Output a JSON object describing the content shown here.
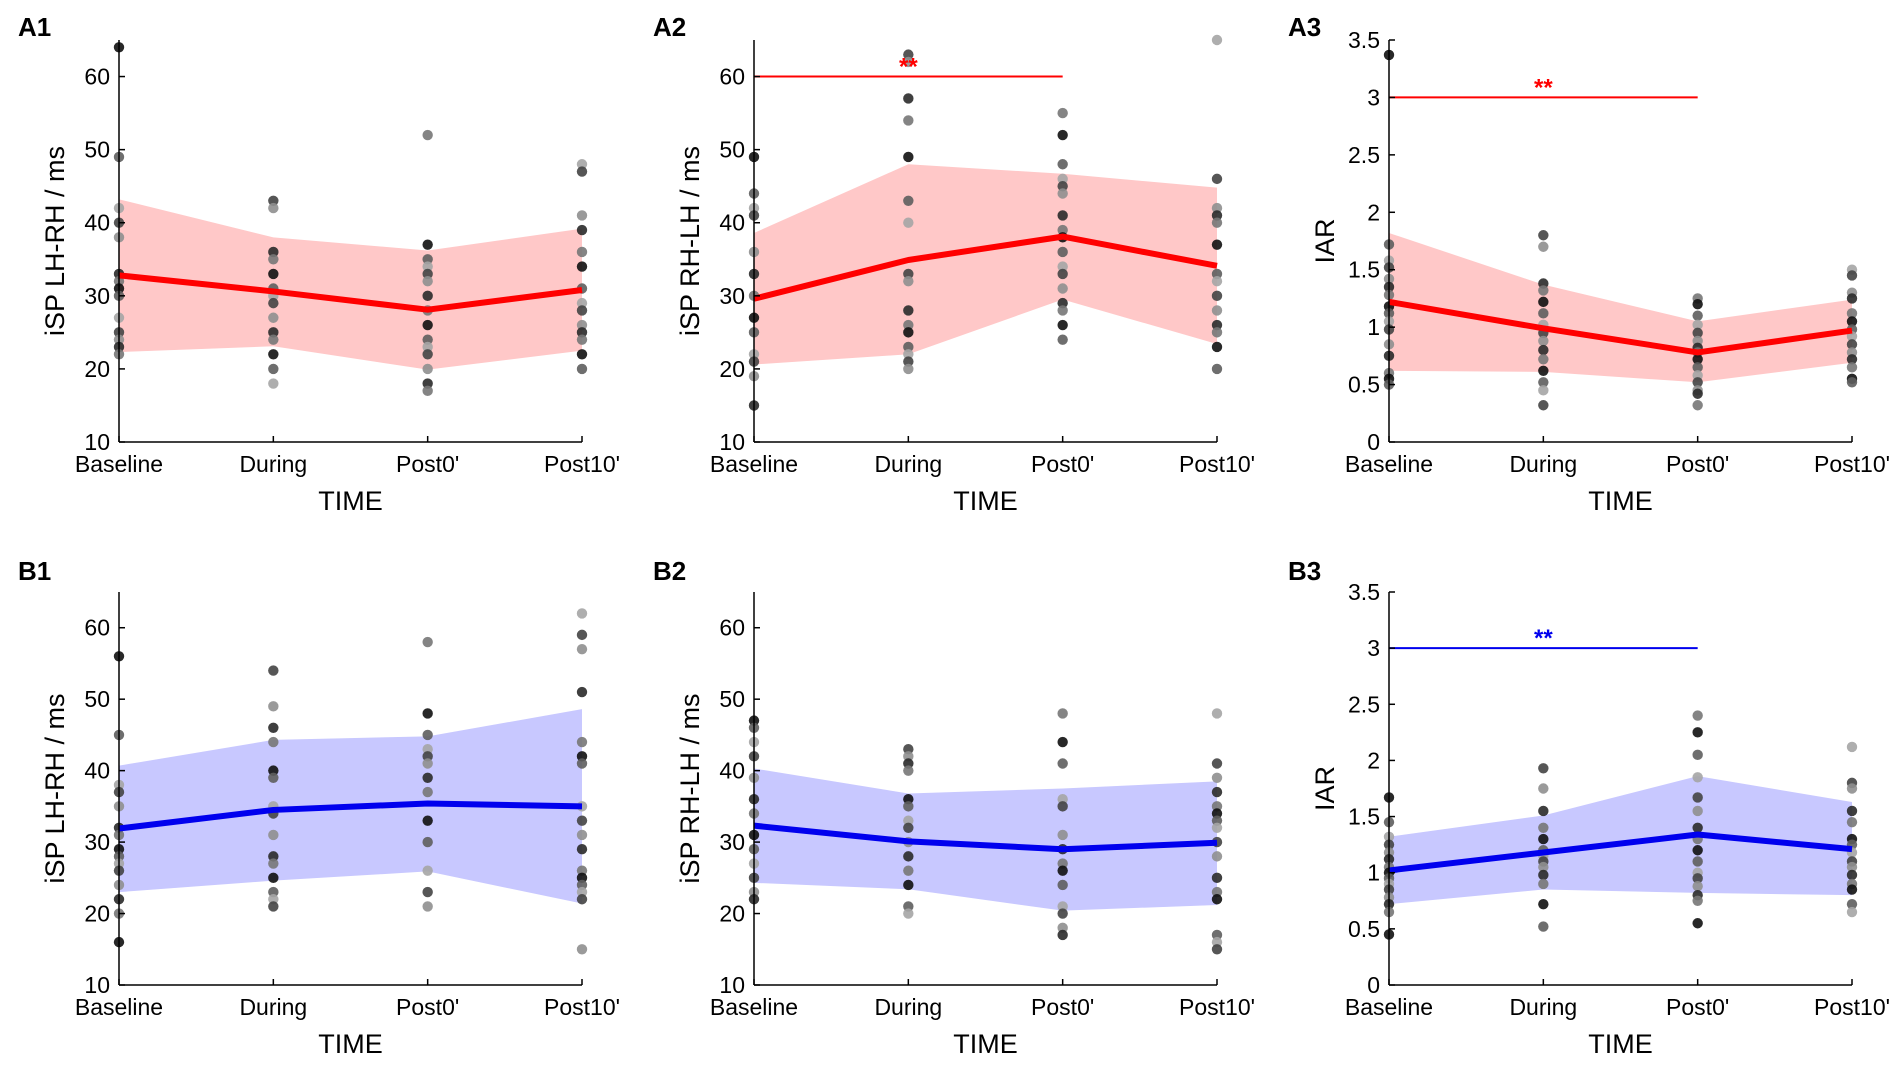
{
  "figure": {
    "description_free": true,
    "x_axis_title": "TIME",
    "categories": [
      "Baseline",
      "During",
      "Post0'",
      "Post10'"
    ]
  },
  "colors": {
    "red_line": "#ff0000",
    "red_band": "#ffc8c8",
    "blue_line": "#0000ee",
    "blue_band": "#c8c8ff",
    "axis": "#000000"
  },
  "chart_data": [
    {
      "panel": "A1",
      "type": "line",
      "color": "red",
      "xlabel": "TIME",
      "ylabel": "iSP LH-RH / ms",
      "categories": [
        "Baseline",
        "During",
        "Post0'",
        "Post10'"
      ],
      "ylim": [
        10,
        65
      ],
      "yticks": [
        10,
        20,
        30,
        40,
        50,
        60
      ],
      "ytick_labels": [
        "10",
        "20",
        "30",
        "40",
        "50",
        "60"
      ],
      "mean": [
        32.8,
        30.6,
        28.1,
        30.8
      ],
      "band_upper": [
        43.2,
        38.0,
        36.2,
        39.2
      ],
      "band_lower": [
        22.3,
        23.1,
        19.9,
        22.5
      ],
      "points": [
        [
          64,
          49,
          42,
          40,
          38,
          33,
          32,
          31,
          30,
          27,
          25,
          24,
          23,
          22
        ],
        [
          43,
          42,
          36,
          35,
          33,
          31,
          30,
          29,
          27,
          25,
          24,
          22,
          20,
          18
        ],
        [
          52,
          37,
          35,
          34,
          33,
          32,
          30,
          28,
          26,
          24,
          23,
          22,
          20,
          18,
          17
        ],
        [
          48,
          47,
          41,
          39,
          36,
          34,
          31,
          29,
          28,
          26,
          25,
          24,
          22,
          20
        ]
      ],
      "significance": null
    },
    {
      "panel": "A2",
      "type": "line",
      "color": "red",
      "xlabel": "TIME",
      "ylabel": "iSP RH-LH / ms",
      "categories": [
        "Baseline",
        "During",
        "Post0'",
        "Post10'"
      ],
      "ylim": [
        10,
        65
      ],
      "yticks": [
        10,
        20,
        30,
        40,
        50,
        60
      ],
      "ytick_labels": [
        "10",
        "20",
        "30",
        "40",
        "50",
        "60"
      ],
      "mean": [
        29.6,
        34.9,
        38.1,
        34.1
      ],
      "band_upper": [
        38.6,
        48.0,
        46.7,
        44.8
      ],
      "band_lower": [
        20.6,
        22.0,
        29.5,
        23.4
      ],
      "points": [
        [
          49,
          44,
          42,
          41,
          36,
          33,
          30,
          27,
          25,
          22,
          21,
          19,
          15
        ],
        [
          63,
          62,
          57,
          54,
          49,
          43,
          40,
          33,
          32,
          28,
          26,
          25,
          23,
          22,
          21,
          20
        ],
        [
          55,
          52,
          48,
          46,
          45,
          44,
          41,
          39,
          38,
          36,
          34,
          33,
          31,
          29,
          28,
          26,
          24
        ],
        [
          65,
          46,
          42,
          41,
          40,
          37,
          33,
          32,
          30,
          28,
          26,
          25,
          23,
          20
        ]
      ],
      "significance": {
        "from": "Baseline",
        "to": "Post0'",
        "y": 60,
        "label": "**",
        "color": "red"
      }
    },
    {
      "panel": "A3",
      "type": "line",
      "color": "red",
      "xlabel": "TIME",
      "ylabel": "IAR",
      "categories": [
        "Baseline",
        "During",
        "Post0'",
        "Post10'"
      ],
      "ylim": [
        0,
        3.5
      ],
      "yticks": [
        0,
        0.5,
        1,
        1.5,
        2,
        2.5,
        3,
        3.5
      ],
      "ytick_labels": [
        "0",
        "0.5",
        "1",
        "1.5",
        "2",
        "2.5",
        "3",
        "3.5"
      ],
      "mean": [
        1.22,
        0.99,
        0.78,
        0.97
      ],
      "band_upper": [
        1.82,
        1.37,
        1.05,
        1.24
      ],
      "band_lower": [
        0.62,
        0.61,
        0.52,
        0.69
      ],
      "points": [
        [
          3.37,
          1.72,
          1.58,
          1.52,
          1.42,
          1.35,
          1.28,
          1.18,
          1.12,
          1.05,
          0.98,
          0.85,
          0.75,
          0.6,
          0.55,
          0.5
        ],
        [
          1.8,
          1.7,
          1.38,
          1.32,
          1.22,
          1.12,
          1.02,
          0.95,
          0.88,
          0.8,
          0.72,
          0.62,
          0.52,
          0.45,
          0.32
        ],
        [
          1.25,
          1.2,
          1.1,
          1.02,
          0.95,
          0.88,
          0.82,
          0.78,
          0.72,
          0.65,
          0.58,
          0.52,
          0.45,
          0.42,
          0.32
        ],
        [
          1.5,
          1.45,
          1.3,
          1.25,
          1.12,
          1.05,
          0.98,
          0.92,
          0.85,
          0.78,
          0.72,
          0.65,
          0.55,
          0.52
        ]
      ],
      "significance": {
        "from": "Baseline",
        "to": "Post0'",
        "y": 3,
        "label": "**",
        "color": "red"
      }
    },
    {
      "panel": "B1",
      "type": "line",
      "color": "blue",
      "xlabel": "TIME",
      "ylabel": "iSP LH-RH / ms",
      "categories": [
        "Baseline",
        "During",
        "Post0'",
        "Post10'"
      ],
      "ylim": [
        10,
        65
      ],
      "yticks": [
        10,
        20,
        30,
        40,
        50,
        60
      ],
      "ytick_labels": [
        "10",
        "20",
        "30",
        "40",
        "50",
        "60"
      ],
      "mean": [
        31.9,
        34.5,
        35.4,
        35.0
      ],
      "band_upper": [
        40.7,
        44.3,
        44.8,
        48.6
      ],
      "band_lower": [
        23.0,
        24.6,
        25.9,
        21.4
      ],
      "points": [
        [
          56,
          45,
          38,
          37,
          35,
          32,
          31,
          29,
          28,
          27,
          26,
          24,
          22,
          20,
          16
        ],
        [
          54,
          49,
          46,
          44,
          40,
          39,
          35,
          34,
          31,
          28,
          27,
          25,
          23,
          22,
          21
        ],
        [
          58,
          48,
          45,
          43,
          42,
          41,
          39,
          37,
          33,
          30,
          26,
          23,
          21
        ],
        [
          62,
          59,
          57,
          51,
          44,
          42,
          41,
          35,
          33,
          31,
          29,
          26,
          25,
          24,
          23,
          22,
          15
        ]
      ],
      "significance": null
    },
    {
      "panel": "B2",
      "type": "line",
      "color": "blue",
      "xlabel": "TIME",
      "ylabel": "iSP RH-LH / ms",
      "categories": [
        "Baseline",
        "During",
        "Post0'",
        "Post10'"
      ],
      "ylim": [
        10,
        65
      ],
      "yticks": [
        10,
        20,
        30,
        40,
        50,
        60
      ],
      "ytick_labels": [
        "10",
        "20",
        "30",
        "40",
        "50",
        "60"
      ],
      "mean": [
        32.3,
        30.1,
        29.0,
        29.9
      ],
      "band_upper": [
        40.3,
        36.8,
        37.5,
        38.5
      ],
      "band_lower": [
        24.3,
        23.4,
        20.4,
        21.2
      ],
      "points": [
        [
          47,
          46,
          44,
          42,
          39,
          36,
          34,
          31,
          29,
          27,
          25,
          23,
          22
        ],
        [
          43,
          42,
          41,
          40,
          36,
          35,
          33,
          32,
          30,
          28,
          26,
          24,
          21,
          20
        ],
        [
          48,
          44,
          41,
          36,
          35,
          31,
          29,
          27,
          26,
          24,
          21,
          20,
          18,
          17
        ],
        [
          48,
          41,
          39,
          37,
          35,
          34,
          33,
          32,
          30,
          28,
          25,
          23,
          22,
          17,
          16,
          15
        ]
      ],
      "significance": null
    },
    {
      "panel": "B3",
      "type": "line",
      "color": "blue",
      "xlabel": "TIME",
      "ylabel": "IAR",
      "categories": [
        "Baseline",
        "During",
        "Post0'",
        "Post10'"
      ],
      "ylim": [
        0,
        3.5
      ],
      "yticks": [
        0,
        0.5,
        1,
        1.5,
        2,
        2.5,
        3,
        3.5
      ],
      "ytick_labels": [
        "0",
        "0.5",
        "1",
        "1.5",
        "2",
        "2.5",
        "3",
        "3.5"
      ],
      "mean": [
        1.02,
        1.18,
        1.34,
        1.21
      ],
      "band_upper": [
        1.32,
        1.51,
        1.86,
        1.63
      ],
      "band_lower": [
        0.72,
        0.85,
        0.82,
        0.8
      ],
      "points": [
        [
          1.67,
          1.45,
          1.32,
          1.25,
          1.18,
          1.12,
          1.05,
          1.0,
          0.95,
          0.9,
          0.85,
          0.78,
          0.72,
          0.65,
          0.45
        ],
        [
          1.93,
          1.75,
          1.55,
          1.4,
          1.3,
          1.2,
          1.15,
          1.1,
          1.05,
          0.98,
          0.9,
          0.72,
          0.52
        ],
        [
          2.4,
          2.25,
          2.05,
          1.85,
          1.67,
          1.55,
          1.4,
          1.3,
          1.2,
          1.1,
          1.0,
          0.95,
          0.88,
          0.8,
          0.75,
          0.55
        ],
        [
          2.12,
          1.8,
          1.75,
          1.55,
          1.45,
          1.3,
          1.25,
          1.18,
          1.1,
          1.05,
          0.98,
          0.9,
          0.85,
          0.72,
          0.65
        ]
      ],
      "significance": {
        "from": "Baseline",
        "to": "Post0'",
        "y": 3,
        "label": "**",
        "color": "blue"
      }
    }
  ]
}
